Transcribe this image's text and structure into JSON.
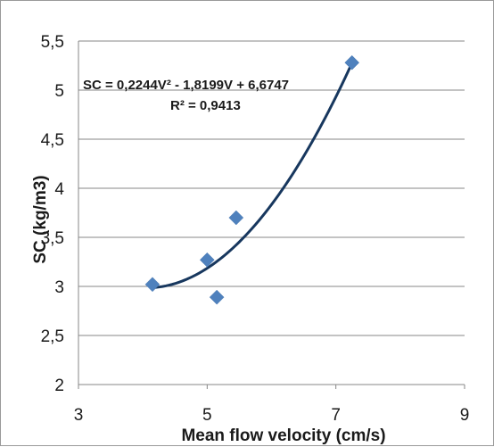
{
  "chart_data": {
    "type": "scatter",
    "xlabel": "Mean flow velocity (cm/s)",
    "ylabel": "SC  (kg/m3)",
    "xlim": [
      3,
      9
    ],
    "ylim": [
      2,
      5.5
    ],
    "x_ticks": [
      "3",
      "5",
      "7",
      "9"
    ],
    "y_ticks": [
      "2",
      "2,5",
      "3",
      "3,5",
      "4",
      "4,5",
      "5",
      "5,5"
    ],
    "grid": "horizontal",
    "points": [
      {
        "x": 4.15,
        "y": 3.02
      },
      {
        "x": 5.0,
        "y": 3.27
      },
      {
        "x": 5.15,
        "y": 2.89
      },
      {
        "x": 5.45,
        "y": 3.7
      },
      {
        "x": 7.25,
        "y": 5.28
      }
    ],
    "trendline": {
      "type": "polynomial",
      "coefficients": {
        "a": 0.2244,
        "b": -1.8199,
        "c": 6.6747
      },
      "x_range": [
        4.15,
        7.25
      ],
      "equation_label": "SC = 0,2244V² - 1,8199V + 6,6747",
      "r2_label": "R² = 0,9413"
    },
    "colors": {
      "marker": "#4f81bd",
      "trendline": "#17375e",
      "grid": "#878787",
      "axis": "#878787"
    }
  }
}
